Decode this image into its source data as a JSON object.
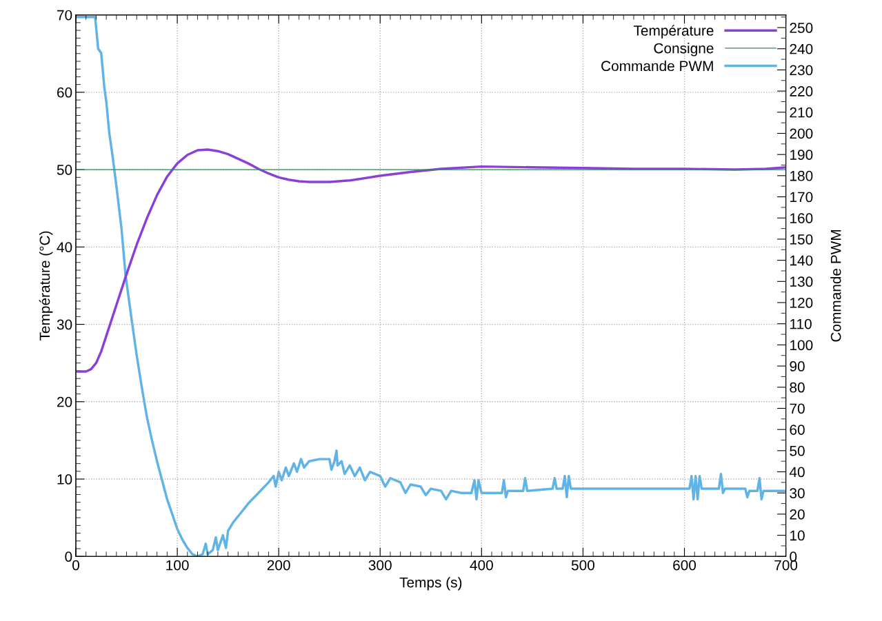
{
  "chart_data": {
    "type": "line",
    "xlabel": "Temps (s)",
    "ylabel": "Température (°C)",
    "y2label": "Commande PWM",
    "xlim": [
      0,
      700
    ],
    "xticks": [
      0,
      100,
      200,
      300,
      400,
      500,
      600,
      700
    ],
    "ylim": [
      0,
      70
    ],
    "yticks": [
      0,
      10,
      20,
      30,
      40,
      50,
      60,
      70
    ],
    "y2lim": [
      0,
      256
    ],
    "y2ticks": [
      0,
      10,
      20,
      30,
      40,
      50,
      60,
      70,
      80,
      90,
      100,
      110,
      120,
      130,
      140,
      150,
      160,
      170,
      180,
      190,
      200,
      210,
      220,
      230,
      240,
      250
    ],
    "grid": true,
    "legend": "top right",
    "marker": "none",
    "line_style": "solid",
    "series": [
      {
        "name": "Température",
        "color": "#8a3fd9",
        "x": [
          0,
          10,
          15,
          20,
          25,
          30,
          40,
          50,
          60,
          70,
          80,
          90,
          100,
          110,
          120,
          130,
          140,
          150,
          160,
          170,
          180,
          190,
          200,
          210,
          220,
          230,
          250,
          270,
          300,
          330,
          360,
          400,
          450,
          500,
          550,
          600,
          650,
          680,
          700
        ],
        "values": [
          23.9,
          23.9,
          24.2,
          25,
          26.5,
          28.5,
          32.5,
          36.5,
          40.3,
          43.7,
          46.7,
          49.1,
          50.8,
          51.9,
          52.5,
          52.6,
          52.4,
          52.0,
          51.4,
          50.8,
          50.1,
          49.5,
          49.0,
          48.7,
          48.5,
          48.4,
          48.4,
          48.6,
          49.2,
          49.7,
          50.1,
          50.4,
          50.3,
          50.2,
          50.1,
          50.1,
          50.0,
          50.1,
          50.3
        ]
      },
      {
        "name": "Consigne",
        "color": "#2e8b57",
        "x": [
          0,
          700
        ],
        "values": [
          50,
          50
        ]
      },
      {
        "name": "Commande PWM",
        "color": "#5fb3e6",
        "axis": "y2",
        "x": [
          0,
          19,
          22,
          25,
          28,
          30,
          33,
          36,
          40,
          45,
          49,
          55,
          60,
          65,
          70,
          75,
          80,
          85,
          90,
          95,
          100,
          105,
          110,
          115,
          120,
          125,
          128,
          130,
          135,
          138,
          140,
          145,
          148,
          150,
          155,
          160,
          170,
          180,
          190,
          195,
          197,
          200,
          203,
          207,
          210,
          215,
          218,
          222,
          225,
          230,
          240,
          250,
          252,
          255,
          257,
          258,
          262,
          265,
          270,
          275,
          280,
          285,
          290,
          300,
          305,
          310,
          320,
          325,
          330,
          340,
          345,
          350,
          360,
          365,
          370,
          380,
          385,
          390,
          393,
          395,
          397,
          400,
          420,
          422,
          424,
          426,
          441,
          443,
          445,
          470,
          472,
          474,
          480,
          482,
          484,
          486,
          488,
          600,
          605,
          607,
          609,
          611,
          613,
          615,
          617,
          634,
          636,
          638,
          640,
          660,
          662,
          664,
          672,
          674,
          676,
          678,
          700
        ],
        "values": [
          255,
          255,
          240,
          238,
          222,
          215,
          200,
          190,
          175,
          155,
          133,
          112,
          95,
          80,
          66,
          55,
          45,
          36,
          27,
          20,
          13,
          8,
          4,
          1,
          0,
          1,
          6,
          1,
          3,
          9,
          3,
          10,
          4,
          12,
          16,
          19,
          25,
          30,
          35,
          38,
          33,
          40,
          36,
          42,
          38,
          44,
          40,
          46,
          42,
          45,
          46,
          46,
          41,
          45,
          50,
          43,
          45,
          39,
          43,
          38,
          42,
          36,
          40,
          38,
          33,
          37,
          35,
          30,
          34,
          33,
          29,
          32,
          31,
          27,
          31,
          30,
          30,
          30,
          36,
          27,
          36,
          30,
          30,
          36,
          28,
          31,
          31,
          37,
          31,
          32,
          37,
          32,
          32,
          38,
          28,
          38,
          32,
          32,
          32,
          38,
          27,
          38,
          27,
          38,
          32,
          32,
          39,
          30,
          32,
          32,
          28,
          31,
          31,
          37,
          27,
          31,
          31
        ]
      }
    ]
  }
}
